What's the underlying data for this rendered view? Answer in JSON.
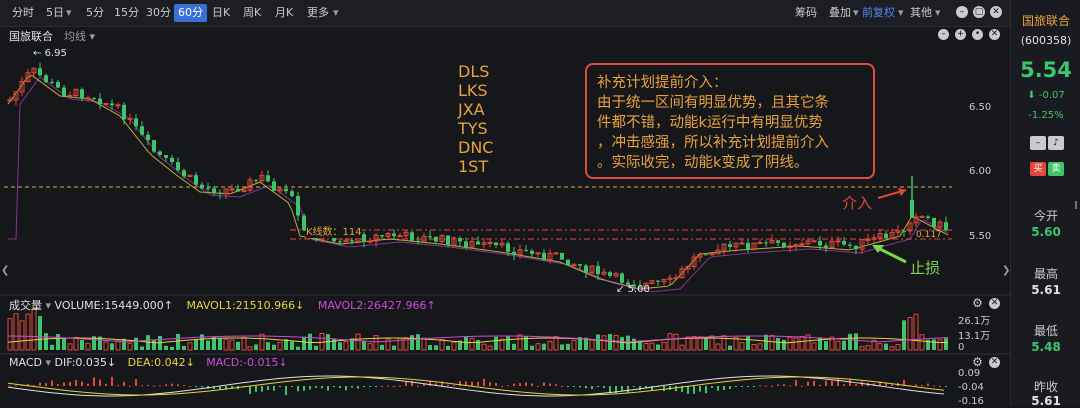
{
  "toolbar": {
    "periods": [
      "分时",
      "5日",
      "5分",
      "15分",
      "30分",
      "60分",
      "日K",
      "周K",
      "月K",
      "更多"
    ],
    "active_period": "60分",
    "chips": "筹码",
    "overlay": "叠加",
    "adjust": "前复权",
    "other": "其他"
  },
  "chart": {
    "stock_name": "国旅联合",
    "ma_selector": "均线",
    "price_ticks": [
      "6.50",
      "6.00",
      "5.50"
    ],
    "high_label": "6.95",
    "low_label": "5.00",
    "kline_label": "K线数：114",
    "right_tick_label": "0.117",
    "tags": [
      "DLS",
      "LKS",
      "JXA",
      "TYS",
      "DNC",
      "1ST"
    ],
    "note_lines": [
      "补充计划提前介入：",
      "由于统一区间有明显优势，且其它条",
      "件都不错，动能k运行中有明显优势",
      "，冲击感强，所以补充计划提前介入",
      "。实际收完，动能k变成了阴线。"
    ],
    "entry_label": "介入",
    "stop_label": "止损"
  },
  "volume": {
    "title": "成交量",
    "volume_text": "VOLUME:15449.000↑",
    "mavol1_text": "MAVOL1:21510.966↓",
    "mavol2_text": "MAVOL2:26427.966↑",
    "ticks": [
      "26.1万",
      "13.1万",
      "0"
    ]
  },
  "macd": {
    "title": "MACD",
    "dif_text": "DIF:0.035↓",
    "dea_text": "DEA:0.042↓",
    "macd_text": "MACD:-0.015↓",
    "ticks": [
      "0.09",
      "-0.04",
      "-0.16"
    ]
  },
  "sidebar": {
    "name": "国旅联合",
    "code": "(600358)",
    "price": "5.54",
    "change": "-0.07",
    "change_pct": "-1.25%",
    "buy": "买",
    "sell": "卖",
    "stats": [
      {
        "label": "今开",
        "value": "5.60"
      },
      {
        "label": "最高",
        "value": "5.61"
      },
      {
        "label": "最低",
        "value": "5.48"
      },
      {
        "label": "昨收",
        "value": "5.61"
      }
    ]
  },
  "colors": {
    "up": "#e0483a",
    "down": "#3ec46b",
    "accent": "#3b6fd8",
    "annotation": "#e8a33d"
  }
}
